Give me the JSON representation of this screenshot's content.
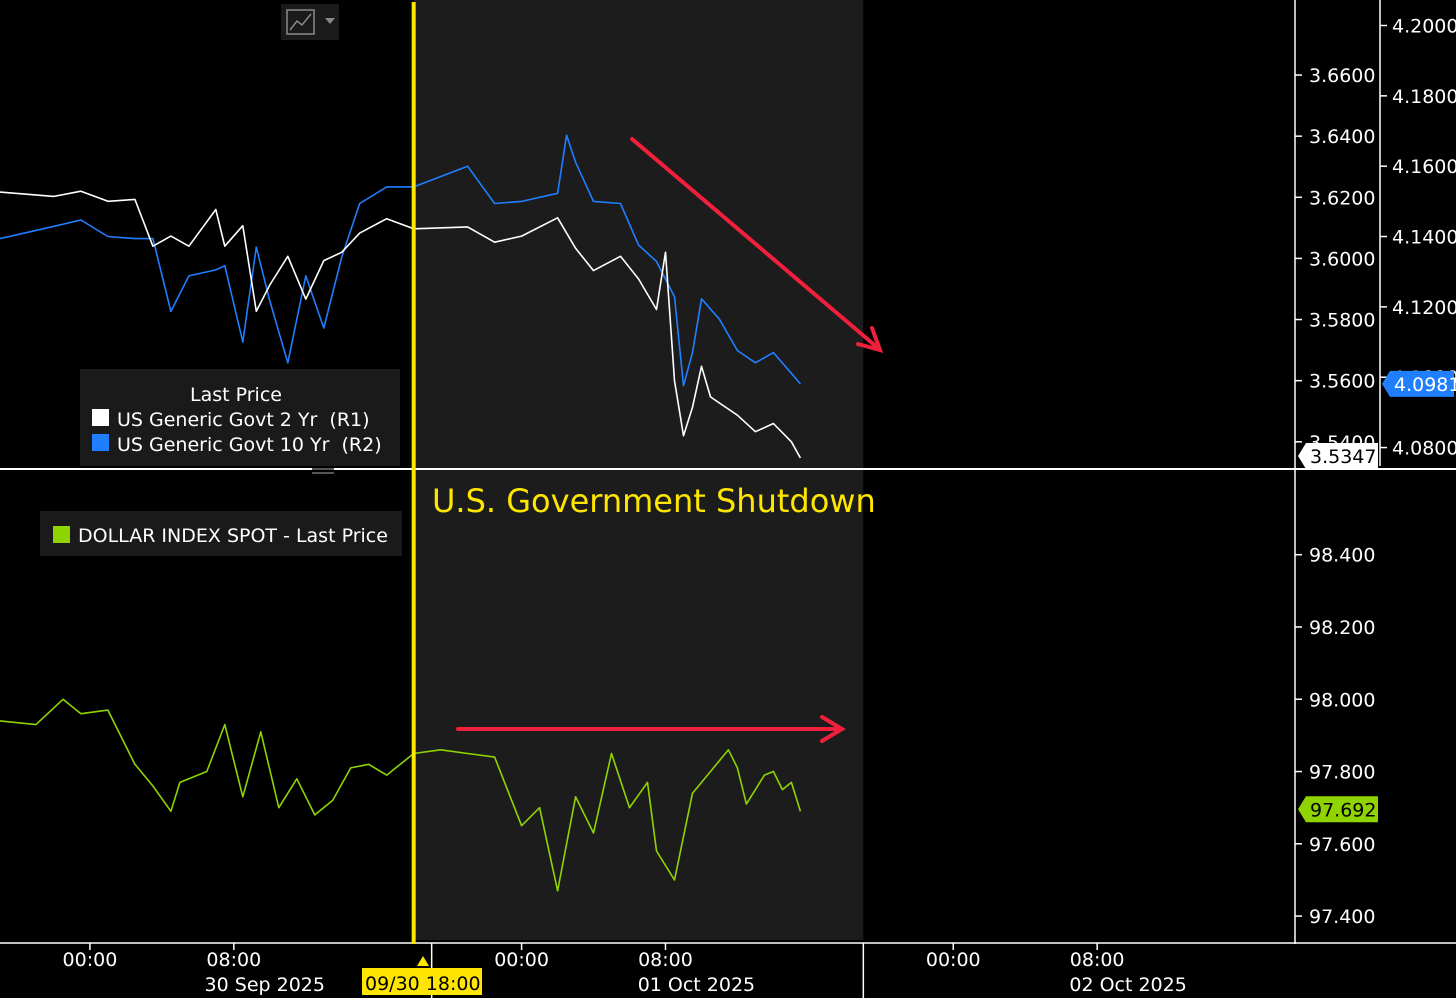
{
  "colors": {
    "background": "#000000",
    "shade": "#1c1c1c",
    "series_2yr": "#ffffff",
    "series_10yr": "#1f7fff",
    "series_dxy": "#8fd400",
    "event_line": "#ffe600",
    "arrow": "#f0203c",
    "grid_axis": "#ffffff"
  },
  "toolbar": {
    "chart_type_icon": "line-chart-icon",
    "dropdown_icon": "chevron-down-icon"
  },
  "event": {
    "title": "U.S. Government Shutdown",
    "marker_label": "09/30 18:00",
    "time": "2025-09-30T18:00"
  },
  "x_axis": {
    "range": [
      "2025-09-29T19:00",
      "2025-10-02T19:00"
    ],
    "time_ticks": [
      {
        "time": "2025-09-30T00:00",
        "label": "00:00"
      },
      {
        "time": "2025-09-30T08:00",
        "label": "08:00"
      },
      {
        "time": "2025-10-01T00:00",
        "label": "00:00"
      },
      {
        "time": "2025-10-01T08:00",
        "label": "08:00"
      },
      {
        "time": "2025-10-02T00:00",
        "label": "00:00"
      },
      {
        "time": "2025-10-02T08:00",
        "label": "08:00"
      }
    ],
    "date_labels": [
      {
        "time": "2025-09-30T12:00",
        "label": "30 Sep 2025"
      },
      {
        "time": "2025-10-01T12:00",
        "label": "01 Oct 2025"
      },
      {
        "time": "2025-10-02T12:00",
        "label": "02 Oct 2025"
      }
    ]
  },
  "chart_data": [
    {
      "type": "line",
      "title": "",
      "legend_title": "Last Price",
      "legend_position": "bottom-left",
      "axis_r1": {
        "ylim": [
          3.5347,
          3.6767
        ],
        "ticks": [
          "3.5400",
          "3.5600",
          "3.5800",
          "3.6000",
          "3.6200",
          "3.6400",
          "3.6600"
        ],
        "tick_values": [
          3.54,
          3.56,
          3.58,
          3.6,
          3.62,
          3.64,
          3.66
        ],
        "last_value_label": "3.5347"
      },
      "axis_r2": {
        "ylim": [
          4.0776,
          4.2027
        ],
        "ticks": [
          "4.0800",
          "4.1000",
          "4.1200",
          "4.1400",
          "4.1600",
          "4.1800",
          "4.2000"
        ],
        "tick_values": [
          4.08,
          4.1,
          4.12,
          4.14,
          4.16,
          4.18,
          4.2
        ],
        "last_value_label": "4.0981"
      },
      "series": [
        {
          "name": "US Generic Govt 2 Yr  (R1)",
          "axis": "R1",
          "x": [
            "2025-09-29T19:00",
            "2025-09-29T22:00",
            "2025-09-29T23:30",
            "2025-09-30T01:00",
            "2025-09-30T02:30",
            "2025-09-30T03:30",
            "2025-09-30T04:30",
            "2025-09-30T05:30",
            "2025-09-30T07:00",
            "2025-09-30T07:30",
            "2025-09-30T08:30",
            "2025-09-30T09:15",
            "2025-09-30T10:00",
            "2025-09-30T11:00",
            "2025-09-30T12:00",
            "2025-09-30T13:00",
            "2025-09-30T14:00",
            "2025-09-30T15:00",
            "2025-09-30T16:30",
            "2025-09-30T18:00",
            "2025-09-30T21:00",
            "2025-09-30T22:30",
            "2025-10-01T00:00",
            "2025-10-01T02:00",
            "2025-10-01T03:00",
            "2025-10-01T04:00",
            "2025-10-01T05:30",
            "2025-10-01T06:30",
            "2025-10-01T07:30",
            "2025-10-01T08:00",
            "2025-10-01T08:30",
            "2025-10-01T09:00",
            "2025-10-01T09:30",
            "2025-10-01T10:00",
            "2025-10-01T10:30",
            "2025-10-01T11:00",
            "2025-10-01T12:00",
            "2025-10-01T13:00",
            "2025-10-01T14:00",
            "2025-10-01T15:00",
            "2025-10-01T15:30"
          ],
          "values": [
            3.6217,
            3.6203,
            3.622,
            3.6187,
            3.6193,
            3.604,
            3.6073,
            3.604,
            3.616,
            3.604,
            3.6107,
            3.5827,
            3.5913,
            3.6007,
            3.5867,
            3.5993,
            3.602,
            3.6083,
            3.613,
            3.6097,
            3.6103,
            3.6053,
            3.6073,
            3.6133,
            3.6033,
            3.596,
            3.6007,
            3.5933,
            3.5833,
            3.602,
            3.56,
            3.542,
            3.5513,
            3.5647,
            3.5547,
            3.5527,
            3.5487,
            3.5433,
            3.546,
            3.54,
            3.5347
          ]
        },
        {
          "name": "US Generic Govt 10 Yr  (R2)",
          "axis": "R2",
          "x": [
            "2025-09-29T19:00",
            "2025-09-29T22:00",
            "2025-09-29T23:30",
            "2025-09-30T01:00",
            "2025-09-30T02:30",
            "2025-09-30T03:30",
            "2025-09-30T04:30",
            "2025-09-30T05:30",
            "2025-09-30T07:00",
            "2025-09-30T07:30",
            "2025-09-30T08:30",
            "2025-09-30T09:15",
            "2025-09-30T10:00",
            "2025-09-30T11:00",
            "2025-09-30T12:00",
            "2025-09-30T13:00",
            "2025-09-30T14:00",
            "2025-09-30T15:00",
            "2025-09-30T16:30",
            "2025-09-30T18:00",
            "2025-09-30T21:00",
            "2025-09-30T22:30",
            "2025-10-01T00:00",
            "2025-10-01T02:00",
            "2025-10-01T02:30",
            "2025-10-01T03:00",
            "2025-10-01T04:00",
            "2025-10-01T05:30",
            "2025-10-01T06:30",
            "2025-10-01T07:30",
            "2025-10-01T08:30",
            "2025-10-01T09:00",
            "2025-10-01T09:30",
            "2025-10-01T10:00",
            "2025-10-01T11:00",
            "2025-10-01T12:00",
            "2025-10-01T13:00",
            "2025-10-01T14:00",
            "2025-10-01T15:00",
            "2025-10-01T15:30"
          ],
          "values": [
            4.1394,
            4.1429,
            4.1447,
            4.14,
            4.1394,
            4.1394,
            4.1187,
            4.1288,
            4.1305,
            4.1317,
            4.11,
            4.137,
            4.1217,
            4.1041,
            4.1288,
            4.114,
            4.1341,
            4.1494,
            4.1541,
            4.1541,
            4.16,
            4.1494,
            4.15,
            4.1523,
            4.1688,
            4.1611,
            4.15,
            4.1494,
            4.1376,
            4.1329,
            4.1229,
            4.0976,
            4.107,
            4.1223,
            4.1165,
            4.1076,
            4.1041,
            4.107,
            4.1011,
            4.0981
          ]
        }
      ]
    },
    {
      "type": "line",
      "title": "",
      "legend_position": "top-left",
      "ylim": [
        97.367,
        98.568
      ],
      "ticks": [
        "97.400",
        "97.600",
        "97.800",
        "98.000",
        "98.200",
        "98.400"
      ],
      "tick_values": [
        97.4,
        97.6,
        97.8,
        98.0,
        98.2,
        98.4
      ],
      "last_value_label": "97.692",
      "series": [
        {
          "name": "DOLLAR INDEX SPOT - Last Price",
          "x": [
            "2025-09-29T19:00",
            "2025-09-29T21:00",
            "2025-09-29T22:30",
            "2025-09-29T23:30",
            "2025-09-30T01:00",
            "2025-09-30T02:30",
            "2025-09-30T03:30",
            "2025-09-30T04:30",
            "2025-09-30T05:00",
            "2025-09-30T06:30",
            "2025-09-30T07:30",
            "2025-09-30T08:30",
            "2025-09-30T09:30",
            "2025-09-30T10:30",
            "2025-09-30T11:30",
            "2025-09-30T12:30",
            "2025-09-30T13:30",
            "2025-09-30T14:30",
            "2025-09-30T15:30",
            "2025-09-30T16:30",
            "2025-09-30T18:00",
            "2025-09-30T19:30",
            "2025-09-30T21:00",
            "2025-09-30T22:30",
            "2025-10-01T00:00",
            "2025-10-01T01:00",
            "2025-10-01T02:00",
            "2025-10-01T03:00",
            "2025-10-01T04:00",
            "2025-10-01T05:00",
            "2025-10-01T06:00",
            "2025-10-01T07:00",
            "2025-10-01T07:30",
            "2025-10-01T08:30",
            "2025-10-01T09:30",
            "2025-10-01T10:30",
            "2025-10-01T11:30",
            "2025-10-01T12:00",
            "2025-10-01T12:30",
            "2025-10-01T13:30",
            "2025-10-01T14:00",
            "2025-10-01T14:30",
            "2025-10-01T15:00",
            "2025-10-01T15:30"
          ],
          "values": [
            97.94,
            97.93,
            98.0,
            97.96,
            97.97,
            97.82,
            97.76,
            97.69,
            97.77,
            97.8,
            97.93,
            97.73,
            97.91,
            97.7,
            97.78,
            97.68,
            97.72,
            97.81,
            97.82,
            97.79,
            97.85,
            97.86,
            97.85,
            97.84,
            97.65,
            97.7,
            97.47,
            97.73,
            97.63,
            97.85,
            97.7,
            97.77,
            97.58,
            97.5,
            97.74,
            97.8,
            97.86,
            97.81,
            97.71,
            97.79,
            97.8,
            97.75,
            97.77,
            97.69
          ]
        }
      ]
    }
  ]
}
